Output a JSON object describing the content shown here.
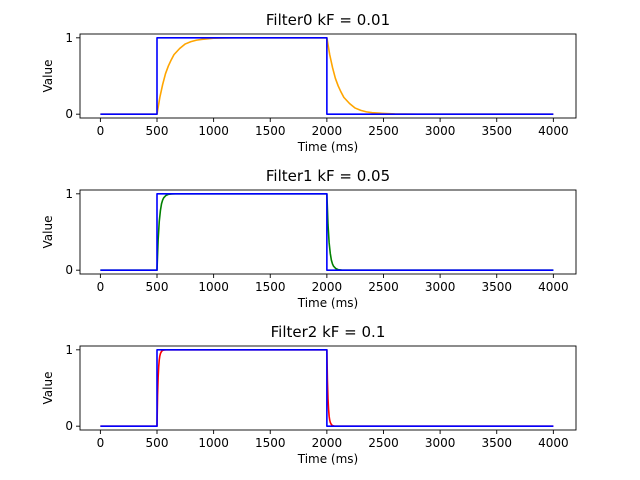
{
  "chart_data": [
    {
      "type": "line",
      "title": "Filter0 kF = 0.01",
      "xlabel": "Time (ms)",
      "ylabel": "Value",
      "xlim": [
        -180,
        4200
      ],
      "ylim": [
        -0.05,
        1.05
      ],
      "xticks": [
        0,
        500,
        1000,
        1500,
        2000,
        2500,
        3000,
        3500,
        4000
      ],
      "yticks": [
        0,
        1
      ],
      "grid": false,
      "series": [
        {
          "color": "#ffa500",
          "x": [
            0,
            500,
            525,
            550,
            575,
            600,
            625,
            650,
            700,
            750,
            800,
            850,
            900,
            1000,
            1100,
            1200,
            1400,
            1600,
            2000,
            2025,
            2050,
            2075,
            2100,
            2125,
            2150,
            2200,
            2250,
            2300,
            2350,
            2400,
            2500,
            2600,
            2800,
            4000
          ],
          "y": [
            0,
            0,
            0.22,
            0.39,
            0.53,
            0.63,
            0.71,
            0.78,
            0.86,
            0.92,
            0.95,
            0.97,
            0.98,
            0.995,
            0.998,
            1,
            1,
            1,
            1,
            0.78,
            0.61,
            0.47,
            0.37,
            0.29,
            0.22,
            0.14,
            0.08,
            0.05,
            0.03,
            0.02,
            0.01,
            0.003,
            0,
            0
          ]
        },
        {
          "color": "#0000ff",
          "x": [
            0,
            500,
            500,
            2000,
            2000,
            4000
          ],
          "y": [
            0,
            0,
            1,
            1,
            0,
            0
          ]
        }
      ]
    },
    {
      "type": "line",
      "title": "Filter1 kF = 0.05",
      "xlabel": "Time (ms)",
      "ylabel": "Value",
      "xlim": [
        -180,
        4200
      ],
      "ylim": [
        -0.05,
        1.05
      ],
      "xticks": [
        0,
        500,
        1000,
        1500,
        2000,
        2500,
        3000,
        3500,
        4000
      ],
      "yticks": [
        0,
        1
      ],
      "grid": false,
      "series": [
        {
          "color": "#008000",
          "x": [
            0,
            500,
            510,
            520,
            530,
            540,
            550,
            560,
            580,
            600,
            630,
            660,
            700,
            2000,
            2010,
            2020,
            2030,
            2040,
            2050,
            2060,
            2080,
            2100,
            2130,
            2160,
            2200,
            4000
          ],
          "y": [
            0,
            0,
            0.4,
            0.64,
            0.78,
            0.87,
            0.92,
            0.95,
            0.98,
            0.993,
            0.998,
            1,
            1,
            1,
            0.6,
            0.36,
            0.22,
            0.13,
            0.08,
            0.05,
            0.02,
            0.007,
            0.002,
            0,
            0,
            0
          ]
        },
        {
          "color": "#0000ff",
          "x": [
            0,
            500,
            500,
            2000,
            2000,
            4000
          ],
          "y": [
            0,
            0,
            1,
            1,
            0,
            0
          ]
        }
      ]
    },
    {
      "type": "line",
      "title": "Filter2 kF = 0.1",
      "xlabel": "Time (ms)",
      "ylabel": "Value",
      "xlim": [
        -180,
        4200
      ],
      "ylim": [
        -0.05,
        1.05
      ],
      "xticks": [
        0,
        500,
        1000,
        1500,
        2000,
        2500,
        3000,
        3500,
        4000
      ],
      "yticks": [
        0,
        1
      ],
      "grid": false,
      "series": [
        {
          "color": "#ff0000",
          "x": [
            0,
            500,
            505,
            510,
            515,
            520,
            525,
            530,
            540,
            550,
            565,
            580,
            600,
            2000,
            2005,
            2010,
            2015,
            2020,
            2025,
            2030,
            2040,
            2050,
            2065,
            2080,
            2100,
            4000
          ],
          "y": [
            0,
            0,
            0.4,
            0.64,
            0.78,
            0.87,
            0.92,
            0.95,
            0.98,
            0.993,
            0.998,
            1,
            1,
            1,
            0.6,
            0.36,
            0.22,
            0.13,
            0.08,
            0.05,
            0.02,
            0.007,
            0.002,
            0,
            0,
            0
          ]
        },
        {
          "color": "#0000ff",
          "x": [
            0,
            500,
            500,
            2000,
            2000,
            4000
          ],
          "y": [
            0,
            0,
            1,
            1,
            0,
            0
          ]
        }
      ]
    }
  ]
}
